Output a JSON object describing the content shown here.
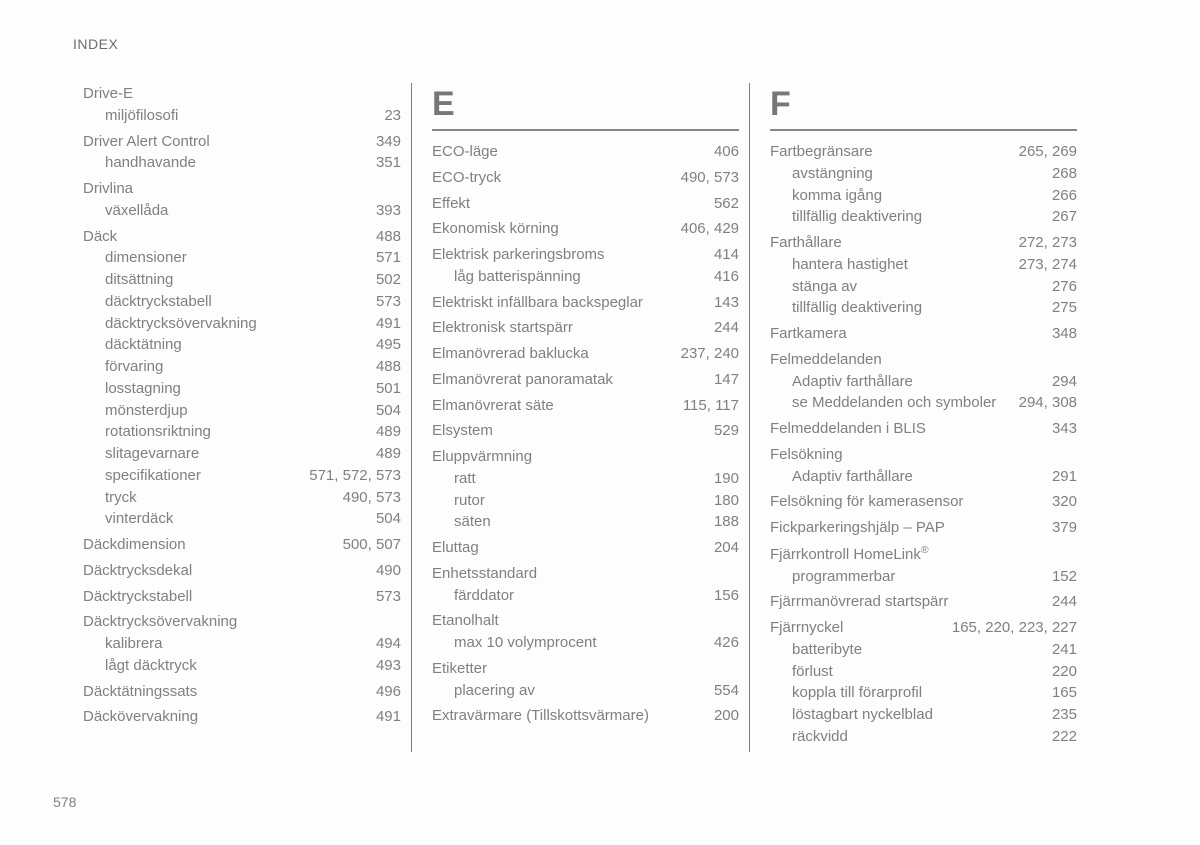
{
  "header": "INDEX",
  "pageNumber": "578",
  "columns": [
    {
      "letter": null,
      "items": [
        {
          "type": "group",
          "main": {
            "label": "Drive-E",
            "pages": ""
          },
          "subs": [
            {
              "label": "miljöfilosofi",
              "pages": "23"
            }
          ]
        },
        {
          "type": "group",
          "main": {
            "label": "Driver Alert Control",
            "pages": "349"
          },
          "subs": [
            {
              "label": "handhavande",
              "pages": "351"
            }
          ]
        },
        {
          "type": "group",
          "main": {
            "label": "Drivlina",
            "pages": ""
          },
          "subs": [
            {
              "label": "växellåda",
              "pages": "393"
            }
          ]
        },
        {
          "type": "group",
          "main": {
            "label": "Däck",
            "pages": "488"
          },
          "subs": [
            {
              "label": "dimensioner",
              "pages": "571"
            },
            {
              "label": "ditsättning",
              "pages": "502"
            },
            {
              "label": "däcktryckstabell",
              "pages": "573"
            },
            {
              "label": "däcktrycksövervakning",
              "pages": "491"
            },
            {
              "label": "däcktätning",
              "pages": "495"
            },
            {
              "label": "förvaring",
              "pages": "488"
            },
            {
              "label": "losstagning",
              "pages": "501"
            },
            {
              "label": "mönsterdjup",
              "pages": "504"
            },
            {
              "label": "rotationsriktning",
              "pages": "489"
            },
            {
              "label": "slitagevarnare",
              "pages": "489"
            },
            {
              "label": "specifikationer",
              "pages": "571, 572, 573"
            },
            {
              "label": "tryck",
              "pages": "490, 573"
            },
            {
              "label": "vinterdäck",
              "pages": "504"
            }
          ]
        },
        {
          "type": "single",
          "main": {
            "label": "Däckdimension",
            "pages": "500, 507"
          }
        },
        {
          "type": "single",
          "main": {
            "label": "Däcktrycksdekal",
            "pages": "490"
          }
        },
        {
          "type": "single",
          "main": {
            "label": "Däcktryckstabell",
            "pages": "573"
          }
        },
        {
          "type": "group",
          "main": {
            "label": "Däcktrycksövervakning",
            "pages": ""
          },
          "subs": [
            {
              "label": "kalibrera",
              "pages": "494"
            },
            {
              "label": "lågt däcktryck",
              "pages": "493"
            }
          ]
        },
        {
          "type": "single",
          "main": {
            "label": "Däcktätningssats",
            "pages": "496"
          }
        },
        {
          "type": "single",
          "main": {
            "label": "Däckövervakning",
            "pages": "491"
          }
        }
      ]
    },
    {
      "letter": "E",
      "items": [
        {
          "type": "single",
          "main": {
            "label": "ECO-läge",
            "pages": "406"
          }
        },
        {
          "type": "single",
          "main": {
            "label": "ECO-tryck",
            "pages": "490, 573"
          }
        },
        {
          "type": "single",
          "main": {
            "label": "Effekt",
            "pages": "562"
          }
        },
        {
          "type": "single",
          "main": {
            "label": "Ekonomisk körning",
            "pages": "406, 429"
          }
        },
        {
          "type": "group",
          "main": {
            "label": "Elektrisk parkeringsbroms",
            "pages": "414"
          },
          "subs": [
            {
              "label": "låg batterispänning",
              "pages": "416"
            }
          ]
        },
        {
          "type": "single",
          "main": {
            "label": "Elektriskt infällbara backspeglar",
            "pages": "143"
          }
        },
        {
          "type": "single",
          "main": {
            "label": "Elektronisk startspärr",
            "pages": "244"
          }
        },
        {
          "type": "single",
          "main": {
            "label": "Elmanövrerad baklucka",
            "pages": "237, 240"
          }
        },
        {
          "type": "single",
          "main": {
            "label": "Elmanövrerat panoramatak",
            "pages": "147"
          }
        },
        {
          "type": "single",
          "main": {
            "label": "Elmanövrerat säte",
            "pages": "115, 117"
          }
        },
        {
          "type": "single",
          "main": {
            "label": "Elsystem",
            "pages": "529"
          }
        },
        {
          "type": "group",
          "main": {
            "label": "Eluppvärmning",
            "pages": ""
          },
          "subs": [
            {
              "label": "ratt",
              "pages": "190"
            },
            {
              "label": "rutor",
              "pages": "180"
            },
            {
              "label": "säten",
              "pages": "188"
            }
          ]
        },
        {
          "type": "single",
          "main": {
            "label": "Eluttag",
            "pages": "204"
          }
        },
        {
          "type": "group",
          "main": {
            "label": "Enhetsstandard",
            "pages": ""
          },
          "subs": [
            {
              "label": "färddator",
              "pages": "156"
            }
          ]
        },
        {
          "type": "group",
          "main": {
            "label": "Etanolhalt",
            "pages": ""
          },
          "subs": [
            {
              "label": "max 10 volymprocent",
              "pages": "426"
            }
          ]
        },
        {
          "type": "group",
          "main": {
            "label": "Etiketter",
            "pages": ""
          },
          "subs": [
            {
              "label": "placering av",
              "pages": "554"
            }
          ]
        },
        {
          "type": "single",
          "main": {
            "label": "Extravärmare (Tillskottsvärmare)",
            "pages": "200"
          }
        }
      ]
    },
    {
      "letter": "F",
      "items": [
        {
          "type": "group",
          "main": {
            "label": "Fartbegränsare",
            "pages": "265, 269"
          },
          "subs": [
            {
              "label": "avstängning",
              "pages": "268"
            },
            {
              "label": "komma igång",
              "pages": "266"
            },
            {
              "label": "tillfällig deaktivering",
              "pages": "267"
            }
          ]
        },
        {
          "type": "group",
          "main": {
            "label": "Farthållare",
            "pages": "272, 273"
          },
          "subs": [
            {
              "label": "hantera hastighet",
              "pages": "273, 274"
            },
            {
              "label": "stänga av",
              "pages": "276"
            },
            {
              "label": "tillfällig deaktivering",
              "pages": "275"
            }
          ]
        },
        {
          "type": "single",
          "main": {
            "label": "Fartkamera",
            "pages": "348"
          }
        },
        {
          "type": "group",
          "main": {
            "label": "Felmeddelanden",
            "pages": ""
          },
          "subs": [
            {
              "label": "Adaptiv farthållare",
              "pages": "294"
            },
            {
              "label": "se Meddelanden och symboler",
              "pages": "294, 308"
            }
          ]
        },
        {
          "type": "single",
          "main": {
            "label": "Felmeddelanden i BLIS",
            "pages": "343"
          }
        },
        {
          "type": "group",
          "main": {
            "label": "Felsökning",
            "pages": ""
          },
          "subs": [
            {
              "label": "Adaptiv farthållare",
              "pages": "291"
            }
          ]
        },
        {
          "type": "single",
          "main": {
            "label": "Felsökning för kamerasensor",
            "pages": "320"
          }
        },
        {
          "type": "single",
          "main": {
            "label": "Fickparkeringshjälp – PAP",
            "pages": "379"
          }
        },
        {
          "type": "group",
          "main": {
            "label": "Fjärrkontroll HomeLink<sup>®</sup>",
            "pages": "",
            "html": true
          },
          "subs": [
            {
              "label": "programmerbar",
              "pages": "152"
            }
          ]
        },
        {
          "type": "single",
          "main": {
            "label": "Fjärrmanövrerad startspärr",
            "pages": "244"
          }
        },
        {
          "type": "group",
          "main": {
            "label": "Fjärrnyckel",
            "pages": "165, 220, 223, 227"
          },
          "subs": [
            {
              "label": "batteribyte",
              "pages": "241"
            },
            {
              "label": "förlust",
              "pages": "220"
            },
            {
              "label": "koppla till förarprofil",
              "pages": "165"
            },
            {
              "label": "löstagbart nyckelblad",
              "pages": "235"
            },
            {
              "label": "räckvidd",
              "pages": "222"
            }
          ]
        }
      ]
    }
  ]
}
